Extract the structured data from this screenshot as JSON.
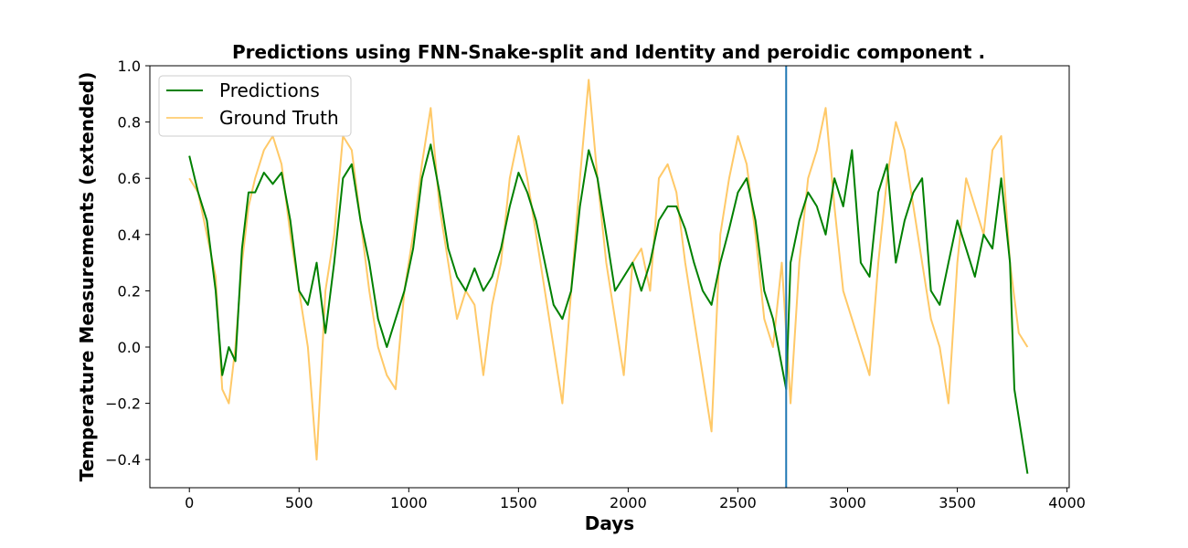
{
  "chart_data": {
    "type": "line",
    "title": "Predictions using FNN-Snake-split and Identity and peroidic component .",
    "xlabel": "Days",
    "ylabel": "Temperature Measurements (extended)",
    "xlim": [
      -180,
      4010
    ],
    "ylim": [
      -0.5,
      1.0
    ],
    "xticks": [
      0,
      500,
      1000,
      1500,
      2000,
      2500,
      3000,
      3500,
      4000
    ],
    "yticks": [
      -0.4,
      -0.2,
      0.0,
      0.2,
      0.4,
      0.6,
      0.8,
      1.0
    ],
    "ytick_labels": [
      "−0.4",
      "−0.2",
      "0.0",
      "0.2",
      "0.4",
      "0.6",
      "0.8",
      "1.0"
    ],
    "grid": false,
    "legend_position": "top-left",
    "split_line_x": 2720,
    "series": [
      {
        "name": "Predictions",
        "color": "#008000",
        "x": [
          0,
          40,
          80,
          120,
          150,
          180,
          210,
          240,
          270,
          300,
          340,
          380,
          420,
          460,
          500,
          540,
          580,
          620,
          660,
          700,
          740,
          780,
          820,
          860,
          900,
          940,
          980,
          1020,
          1060,
          1100,
          1140,
          1180,
          1220,
          1260,
          1300,
          1340,
          1380,
          1420,
          1460,
          1500,
          1540,
          1580,
          1620,
          1660,
          1700,
          1740,
          1780,
          1820,
          1860,
          1900,
          1940,
          1980,
          2020,
          2060,
          2100,
          2140,
          2180,
          2220,
          2260,
          2300,
          2340,
          2380,
          2420,
          2460,
          2500,
          2540,
          2580,
          2620,
          2660,
          2720,
          2740,
          2780,
          2820,
          2860,
          2900,
          2940,
          2980,
          3020,
          3060,
          3100,
          3140,
          3180,
          3220,
          3260,
          3300,
          3340,
          3380,
          3420,
          3460,
          3500,
          3540,
          3580,
          3620,
          3660,
          3700,
          3740,
          3760,
          3780,
          3820
        ],
        "y": [
          0.68,
          0.55,
          0.45,
          0.2,
          -0.1,
          0.0,
          -0.05,
          0.35,
          0.55,
          0.55,
          0.62,
          0.58,
          0.62,
          0.45,
          0.2,
          0.15,
          0.3,
          0.05,
          0.3,
          0.6,
          0.65,
          0.45,
          0.3,
          0.1,
          0.0,
          0.1,
          0.2,
          0.35,
          0.6,
          0.72,
          0.55,
          0.35,
          0.25,
          0.2,
          0.28,
          0.2,
          0.25,
          0.35,
          0.5,
          0.62,
          0.55,
          0.45,
          0.3,
          0.15,
          0.1,
          0.2,
          0.5,
          0.7,
          0.6,
          0.4,
          0.2,
          0.25,
          0.3,
          0.2,
          0.3,
          0.45,
          0.5,
          0.5,
          0.42,
          0.3,
          0.2,
          0.15,
          0.3,
          0.42,
          0.55,
          0.6,
          0.45,
          0.2,
          0.1,
          -0.15,
          0.3,
          0.45,
          0.55,
          0.5,
          0.4,
          0.6,
          0.5,
          0.7,
          0.3,
          0.25,
          0.55,
          0.65,
          0.3,
          0.45,
          0.55,
          0.6,
          0.2,
          0.15,
          0.3,
          0.45,
          0.35,
          0.25,
          0.4,
          0.35,
          0.6,
          0.3,
          -0.15,
          -0.25,
          -0.45
        ]
      },
      {
        "name": "Ground Truth",
        "color": "#ffc04d",
        "x": [
          0,
          40,
          80,
          120,
          150,
          180,
          210,
          240,
          270,
          300,
          340,
          380,
          420,
          460,
          500,
          540,
          580,
          620,
          660,
          700,
          740,
          780,
          820,
          860,
          900,
          940,
          980,
          1020,
          1060,
          1100,
          1140,
          1180,
          1220,
          1260,
          1300,
          1340,
          1380,
          1420,
          1460,
          1500,
          1540,
          1580,
          1620,
          1660,
          1700,
          1740,
          1780,
          1820,
          1860,
          1900,
          1940,
          1980,
          2020,
          2060,
          2100,
          2140,
          2180,
          2220,
          2260,
          2300,
          2340,
          2380,
          2420,
          2460,
          2500,
          2540,
          2580,
          2620,
          2660,
          2700,
          2740,
          2780,
          2820,
          2860,
          2900,
          2940,
          2980,
          3020,
          3060,
          3100,
          3140,
          3180,
          3220,
          3260,
          3300,
          3340,
          3380,
          3420,
          3460,
          3500,
          3540,
          3580,
          3620,
          3660,
          3700,
          3740,
          3780,
          3820
        ],
        "y": [
          0.6,
          0.55,
          0.4,
          0.25,
          -0.15,
          -0.2,
          0.0,
          0.3,
          0.5,
          0.6,
          0.7,
          0.75,
          0.65,
          0.4,
          0.2,
          0.0,
          -0.4,
          0.2,
          0.4,
          0.75,
          0.7,
          0.45,
          0.2,
          0.0,
          -0.1,
          -0.15,
          0.2,
          0.4,
          0.65,
          0.85,
          0.5,
          0.3,
          0.1,
          0.2,
          0.15,
          -0.1,
          0.15,
          0.3,
          0.6,
          0.75,
          0.6,
          0.4,
          0.2,
          0.0,
          -0.2,
          0.2,
          0.6,
          0.95,
          0.6,
          0.3,
          0.1,
          -0.1,
          0.3,
          0.35,
          0.2,
          0.6,
          0.65,
          0.55,
          0.3,
          0.1,
          -0.1,
          -0.3,
          0.4,
          0.6,
          0.75,
          0.65,
          0.4,
          0.1,
          0.0,
          0.3,
          -0.2,
          0.3,
          0.6,
          0.7,
          0.85,
          0.5,
          0.2,
          0.1,
          0.0,
          -0.1,
          0.3,
          0.6,
          0.8,
          0.7,
          0.5,
          0.3,
          0.1,
          0.0,
          -0.2,
          0.3,
          0.6,
          0.5,
          0.4,
          0.7,
          0.75,
          0.3,
          0.05,
          0.0
        ]
      }
    ]
  }
}
